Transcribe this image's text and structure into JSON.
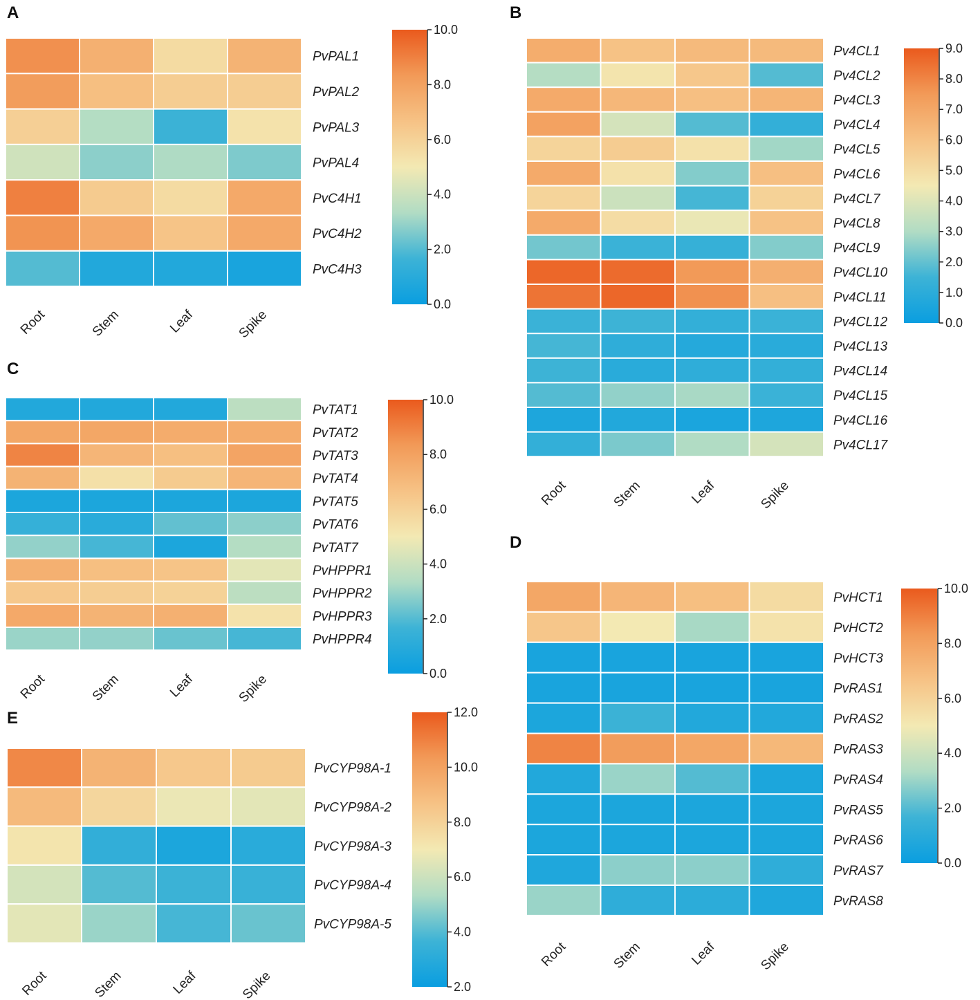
{
  "figure": {
    "colorscale": {
      "stops": [
        "#0a9ee0",
        "#3db3d6",
        "#b1dcc4",
        "#f3e9b3",
        "#f6c285",
        "#f29a58",
        "#ea5a1d"
      ],
      "text_color": "#222222"
    }
  },
  "chart_data": [
    {
      "panel": "A",
      "type": "heatmap",
      "rows": [
        "PvPAL1",
        "PvPAL2",
        "PvPAL3",
        "PvPAL4",
        "PvC4H1",
        "PvC4H2",
        "PvC4H3"
      ],
      "columns": [
        "Root",
        "Stem",
        "Leaf",
        "Spike"
      ],
      "values": [
        [
          8.6,
          7.4,
          5.6,
          7.3
        ],
        [
          8.2,
          6.8,
          6.2,
          6.2
        ],
        [
          6.1,
          3.4,
          1.6,
          5.3
        ],
        [
          4.1,
          2.8,
          3.3,
          2.6
        ],
        [
          9.0,
          6.3,
          5.6,
          7.7
        ],
        [
          8.5,
          7.7,
          6.6,
          7.7
        ],
        [
          2.0,
          0.8,
          0.8,
          0.5
        ]
      ],
      "colorbar": {
        "min": 0.0,
        "max": 10.0,
        "ticks": [
          "0.0",
          "2.0",
          "4.0",
          "6.0",
          "8.0",
          "10.0"
        ]
      }
    },
    {
      "panel": "B",
      "type": "heatmap",
      "rows": [
        "Pv4CL1",
        "Pv4CL2",
        "Pv4CL3",
        "Pv4CL4",
        "Pv4CL5",
        "Pv4CL6",
        "Pv4CL7",
        "Pv4CL8",
        "Pv4CL9",
        "Pv4CL10",
        "Pv4CL11",
        "Pv4CL12",
        "Pv4CL13",
        "Pv4CL14",
        "Pv4CL15",
        "Pv4CL16",
        "Pv4CL17"
      ],
      "columns": [
        "Root",
        "Stem",
        "Leaf",
        "Spike"
      ],
      "values": [
        [
          6.8,
          6.0,
          6.3,
          6.3
        ],
        [
          3.1,
          4.7,
          5.8,
          1.8
        ],
        [
          6.9,
          6.4,
          6.1,
          6.5
        ],
        [
          7.2,
          3.8,
          1.8,
          1.2
        ],
        [
          5.3,
          5.6,
          4.8,
          2.8
        ],
        [
          6.9,
          4.8,
          2.4,
          6.1
        ],
        [
          5.3,
          3.6,
          1.6,
          5.4
        ],
        [
          6.9,
          5.0,
          4.3,
          6.0
        ],
        [
          2.2,
          1.4,
          1.3,
          2.4
        ],
        [
          8.7,
          8.6,
          7.5,
          6.7
        ],
        [
          8.4,
          8.7,
          7.7,
          6.1
        ],
        [
          1.4,
          1.5,
          1.2,
          1.4
        ],
        [
          1.6,
          1.1,
          0.8,
          0.9
        ],
        [
          1.5,
          0.9,
          1.1,
          1.2
        ],
        [
          1.8,
          2.6,
          2.9,
          1.4
        ],
        [
          0.6,
          0.7,
          0.5,
          0.6
        ],
        [
          1.2,
          2.3,
          3.0,
          3.8
        ]
      ],
      "colorbar": {
        "min": 0.0,
        "max": 9.0,
        "ticks": [
          "0.0",
          "1.0",
          "2.0",
          "3.0",
          "4.0",
          "5.0",
          "6.0",
          "7.0",
          "8.0",
          "9.0"
        ]
      }
    },
    {
      "panel": "C",
      "type": "heatmap",
      "rows": [
        "PvTAT1",
        "PvTAT2",
        "PvTAT3",
        "PvTAT4",
        "PvTAT5",
        "PvTAT6",
        "PvTAT7",
        "PvHPPR1",
        "PvHPPR2",
        "PvHPPR3",
        "PvHPPR4"
      ],
      "columns": [
        "Root",
        "Stem",
        "Leaf",
        "Spike"
      ],
      "values": [
        [
          0.8,
          0.8,
          0.8,
          3.6
        ],
        [
          7.8,
          7.8,
          7.6,
          7.6
        ],
        [
          8.9,
          7.2,
          6.8,
          7.9
        ],
        [
          7.3,
          5.4,
          6.3,
          7.2
        ],
        [
          0.6,
          0.6,
          0.6,
          0.6
        ],
        [
          1.4,
          1.0,
          2.2,
          2.8
        ],
        [
          2.9,
          1.8,
          0.6,
          3.4
        ],
        [
          7.4,
          6.8,
          6.6,
          4.6
        ],
        [
          6.4,
          6.2,
          6.0,
          3.6
        ],
        [
          7.7,
          7.3,
          7.4,
          5.3
        ],
        [
          3.0,
          2.9,
          2.3,
          1.8
        ]
      ],
      "colorbar": {
        "min": 0.0,
        "max": 10.0,
        "ticks": [
          "0.0",
          "2.0",
          "4.0",
          "6.0",
          "8.0",
          "10.0"
        ]
      }
    },
    {
      "panel": "D",
      "type": "heatmap",
      "rows": [
        "PvHCT1",
        "PvHCT2",
        "PvHCT3",
        "PvRAS1",
        "PvRAS2",
        "PvRAS3",
        "PvRAS4",
        "PvRAS5",
        "PvRAS6",
        "PvRAS7",
        "PvRAS8"
      ],
      "columns": [
        "Root",
        "Stem",
        "Leaf",
        "Spike"
      ],
      "values": [
        [
          7.8,
          7.2,
          6.8,
          5.6
        ],
        [
          6.5,
          5.0,
          3.2,
          5.3
        ],
        [
          0.5,
          0.5,
          0.5,
          0.5
        ],
        [
          0.5,
          0.5,
          0.5,
          0.5
        ],
        [
          0.6,
          1.6,
          0.8,
          0.8
        ],
        [
          8.9,
          8.2,
          7.8,
          7.1
        ],
        [
          0.8,
          3.0,
          2.0,
          0.6
        ],
        [
          0.6,
          0.6,
          0.6,
          0.6
        ],
        [
          0.6,
          0.6,
          0.6,
          0.6
        ],
        [
          0.7,
          2.8,
          2.8,
          1.2
        ],
        [
          3.0,
          1.2,
          1.1,
          0.7
        ]
      ],
      "colorbar": {
        "min": 0.0,
        "max": 10.0,
        "ticks": [
          "0.0",
          "2.0",
          "4.0",
          "6.0",
          "8.0",
          "10.0"
        ]
      }
    },
    {
      "panel": "E",
      "type": "heatmap",
      "rows": [
        "PvCYP98A-1",
        "PvCYP98A-2",
        "PvCYP98A-3",
        "PvCYP98A-4",
        "PvCYP98A-5"
      ],
      "columns": [
        "Root",
        "Stem",
        "Leaf",
        "Spike"
      ],
      "values": [
        [
          10.8,
          9.3,
          8.4,
          8.3
        ],
        [
          9.0,
          7.8,
          6.8,
          6.6
        ],
        [
          7.2,
          3.3,
          2.6,
          3.0
        ],
        [
          6.2,
          4.0,
          3.6,
          3.5
        ],
        [
          6.6,
          5.0,
          3.8,
          4.3
        ]
      ],
      "colorbar": {
        "min": 2.0,
        "max": 12.0,
        "ticks": [
          "2.0",
          "4.0",
          "6.0",
          "8.0",
          "10.0",
          "12.0"
        ]
      }
    }
  ]
}
